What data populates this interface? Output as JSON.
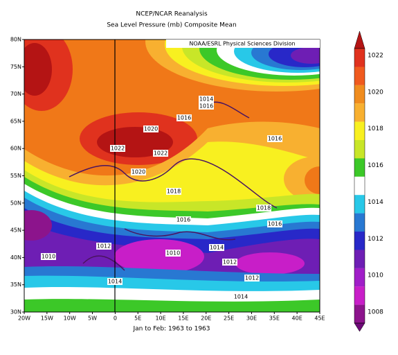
{
  "title": {
    "line1": "NCEP/NCAR Reanalysis",
    "line2": "Sea Level Pressure (mb) Composite Mean"
  },
  "credit": "NOAA/ESRL Physical Sciences Division",
  "footer": "Jan to Feb: 1963 to 1963",
  "y_axis_labels": [
    "80N",
    "75N",
    "70N",
    "65N",
    "60N",
    "55N",
    "50N",
    "45N",
    "40N",
    "35N",
    "30N"
  ],
  "x_axis_labels": [
    "20W",
    "15W",
    "10W",
    "5W",
    "0",
    "5E",
    "10E",
    "15E",
    "20E",
    "25E",
    "30E",
    "35E",
    "40E",
    "45E"
  ],
  "colorbar": {
    "labels": [
      1022,
      1020,
      1018,
      1016,
      1014,
      1012,
      1010,
      1008
    ]
  },
  "contour_labels": [
    1014,
    1016,
    1016,
    1020,
    1022,
    1022,
    1016,
    1020,
    1018,
    1016,
    1018,
    1016,
    1012,
    1014,
    1010,
    1010,
    1012,
    1012,
    1014,
    1014
  ]
}
